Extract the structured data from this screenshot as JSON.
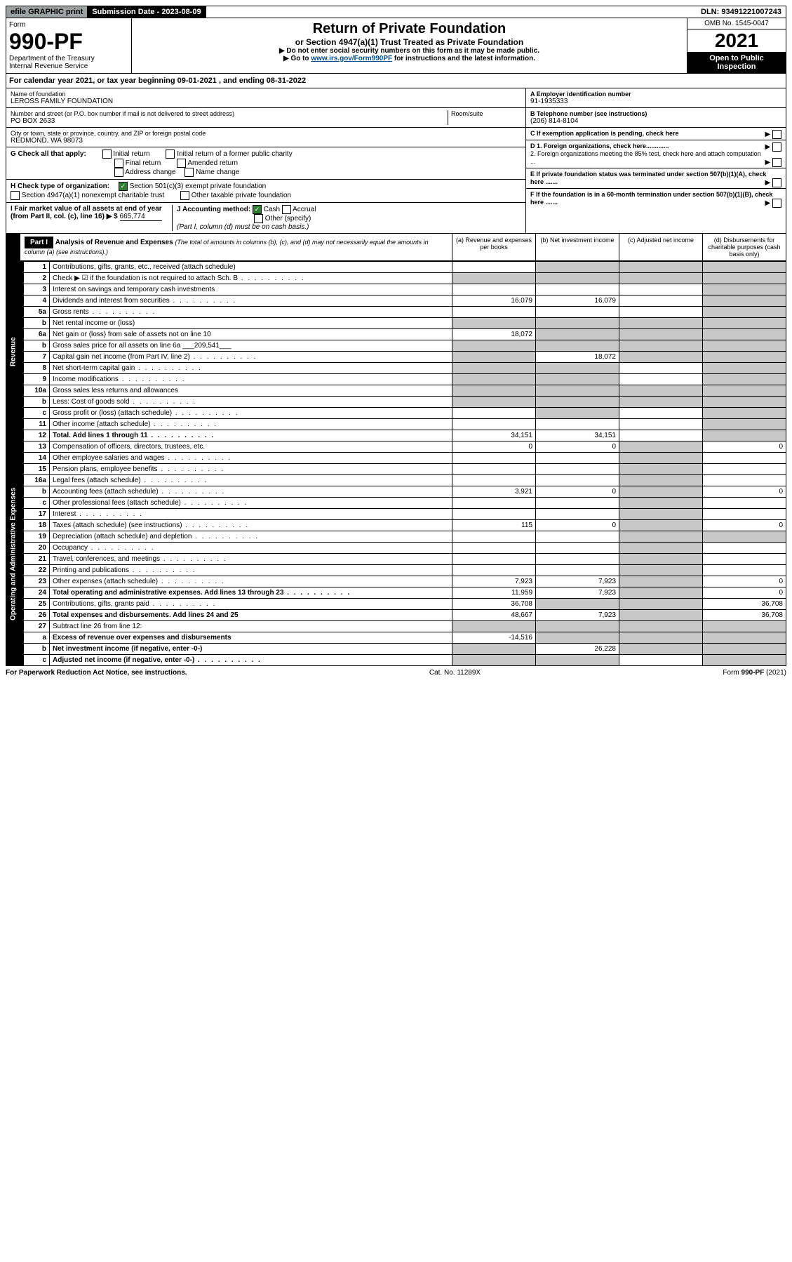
{
  "top": {
    "efile": "efile GRAPHIC print",
    "submission": "Submission Date - 2023-08-09",
    "dln": "DLN: 93491221007243"
  },
  "header": {
    "form_label": "Form",
    "form_num": "990-PF",
    "dept": "Department of the Treasury",
    "irs": "Internal Revenue Service",
    "title": "Return of Private Foundation",
    "subtitle": "or Section 4947(a)(1) Trust Treated as Private Foundation",
    "instr1": "▶ Do not enter social security numbers on this form as it may be made public.",
    "instr2_pre": "▶ Go to ",
    "instr2_link": "www.irs.gov/Form990PF",
    "instr2_post": " for instructions and the latest information.",
    "omb": "OMB No. 1545-0047",
    "year": "2021",
    "open": "Open to Public Inspection"
  },
  "calyear": "For calendar year 2021, or tax year beginning 09-01-2021           , and ending 08-31-2022",
  "name_label": "Name of foundation",
  "name": "LEROSS FAMILY FOUNDATION",
  "addr_label": "Number and street (or P.O. box number if mail is not delivered to street address)",
  "addr": "PO BOX 2633",
  "room_label": "Room/suite",
  "city_label": "City or town, state or province, country, and ZIP or foreign postal code",
  "city": "REDMOND, WA  98073",
  "ein_label": "A Employer identification number",
  "ein": "91-1935333",
  "tel_label": "B Telephone number (see instructions)",
  "tel": "(206) 814-8104",
  "c_label": "C If exemption application is pending, check here",
  "g_label": "G Check all that apply:",
  "g_opts": [
    "Initial return",
    "Initial return of a former public charity",
    "Final return",
    "Amended return",
    "Address change",
    "Name change"
  ],
  "d1": "D 1. Foreign organizations, check here.............",
  "d2": "2. Foreign organizations meeting the 85% test, check here and attach computation ...",
  "h_label": "H Check type of organization:",
  "h1": "Section 501(c)(3) exempt private foundation",
  "h2": "Section 4947(a)(1) nonexempt charitable trust",
  "h3": "Other taxable private foundation",
  "e_label": "E If private foundation status was terminated under section 507(b)(1)(A), check here .......",
  "i_label": "I Fair market value of all assets at end of year (from Part II, col. (c), line 16) ▶ $",
  "i_val": "665,774",
  "j_label": "J Accounting method:",
  "j_cash": "Cash",
  "j_accrual": "Accrual",
  "j_other": "Other (specify)",
  "j_note": "(Part I, column (d) must be on cash basis.)",
  "f_label": "F If the foundation is in a 60-month termination under section 507(b)(1)(B), check here .......",
  "part1": {
    "label": "Part I",
    "title": "Analysis of Revenue and Expenses",
    "title_note": "(The total of amounts in columns (b), (c), and (d) may not necessarily equal the amounts in column (a) (see instructions).)",
    "col_a": "(a) Revenue and expenses per books",
    "col_b": "(b) Net investment income",
    "col_c": "(c) Adjusted net income",
    "col_d": "(d) Disbursements for charitable purposes (cash basis only)"
  },
  "side_rev": "Revenue",
  "side_exp": "Operating and Administrative Expenses",
  "rows": [
    {
      "n": "1",
      "d": "Contributions, gifts, grants, etc., received (attach schedule)",
      "a": "",
      "b": "g",
      "c": "g",
      "dd": "g"
    },
    {
      "n": "2",
      "d": "Check ▶ ☑ if the foundation is not required to attach Sch. B",
      "dots": true,
      "a": "g",
      "b": "g",
      "c": "g",
      "dd": "g",
      "bold_not": true
    },
    {
      "n": "3",
      "d": "Interest on savings and temporary cash investments",
      "a": "",
      "b": "",
      "c": "",
      "dd": "g"
    },
    {
      "n": "4",
      "d": "Dividends and interest from securities",
      "dots": true,
      "a": "16,079",
      "b": "16,079",
      "c": "",
      "dd": "g"
    },
    {
      "n": "5a",
      "d": "Gross rents",
      "dots": true,
      "a": "",
      "b": "",
      "c": "",
      "dd": "g"
    },
    {
      "n": "b",
      "d": "Net rental income or (loss)",
      "a": "g",
      "b": "g",
      "c": "g",
      "dd": "g",
      "inline": true
    },
    {
      "n": "6a",
      "d": "Net gain or (loss) from sale of assets not on line 10",
      "a": "18,072",
      "b": "g",
      "c": "g",
      "dd": "g"
    },
    {
      "n": "b",
      "d": "Gross sales price for all assets on line 6a",
      "inline_val": "209,541",
      "a": "g",
      "b": "g",
      "c": "g",
      "dd": "g"
    },
    {
      "n": "7",
      "d": "Capital gain net income (from Part IV, line 2)",
      "dots": true,
      "a": "g",
      "b": "18,072",
      "c": "g",
      "dd": "g"
    },
    {
      "n": "8",
      "d": "Net short-term capital gain",
      "dots": true,
      "a": "g",
      "b": "g",
      "c": "",
      "dd": "g"
    },
    {
      "n": "9",
      "d": "Income modifications",
      "dots": true,
      "a": "g",
      "b": "g",
      "c": "",
      "dd": "g"
    },
    {
      "n": "10a",
      "d": "Gross sales less returns and allowances",
      "a": "g",
      "b": "g",
      "c": "g",
      "dd": "g",
      "inline": true
    },
    {
      "n": "b",
      "d": "Less: Cost of goods sold",
      "dots": true,
      "a": "g",
      "b": "g",
      "c": "g",
      "dd": "g",
      "inline": true
    },
    {
      "n": "c",
      "d": "Gross profit or (loss) (attach schedule)",
      "dots": true,
      "a": "",
      "b": "g",
      "c": "",
      "dd": "g"
    },
    {
      "n": "11",
      "d": "Other income (attach schedule)",
      "dots": true,
      "a": "",
      "b": "",
      "c": "",
      "dd": "g"
    },
    {
      "n": "12",
      "d": "Total. Add lines 1 through 11",
      "dots": true,
      "bold": true,
      "a": "34,151",
      "b": "34,151",
      "c": "",
      "dd": "g"
    },
    {
      "n": "13",
      "d": "Compensation of officers, directors, trustees, etc.",
      "a": "0",
      "b": "0",
      "c": "g",
      "dd": "0"
    },
    {
      "n": "14",
      "d": "Other employee salaries and wages",
      "dots": true,
      "a": "",
      "b": "",
      "c": "g",
      "dd": ""
    },
    {
      "n": "15",
      "d": "Pension plans, employee benefits",
      "dots": true,
      "a": "",
      "b": "",
      "c": "g",
      "dd": ""
    },
    {
      "n": "16a",
      "d": "Legal fees (attach schedule)",
      "dots": true,
      "a": "",
      "b": "",
      "c": "g",
      "dd": ""
    },
    {
      "n": "b",
      "d": "Accounting fees (attach schedule)",
      "dots": true,
      "a": "3,921",
      "b": "0",
      "c": "g",
      "dd": "0"
    },
    {
      "n": "c",
      "d": "Other professional fees (attach schedule)",
      "dots": true,
      "a": "",
      "b": "",
      "c": "g",
      "dd": ""
    },
    {
      "n": "17",
      "d": "Interest",
      "dots": true,
      "a": "",
      "b": "",
      "c": "g",
      "dd": ""
    },
    {
      "n": "18",
      "d": "Taxes (attach schedule) (see instructions)",
      "dots": true,
      "a": "115",
      "b": "0",
      "c": "g",
      "dd": "0"
    },
    {
      "n": "19",
      "d": "Depreciation (attach schedule) and depletion",
      "dots": true,
      "a": "",
      "b": "",
      "c": "g",
      "dd": "g"
    },
    {
      "n": "20",
      "d": "Occupancy",
      "dots": true,
      "a": "",
      "b": "",
      "c": "g",
      "dd": ""
    },
    {
      "n": "21",
      "d": "Travel, conferences, and meetings",
      "dots": true,
      "a": "",
      "b": "",
      "c": "g",
      "dd": ""
    },
    {
      "n": "22",
      "d": "Printing and publications",
      "dots": true,
      "a": "",
      "b": "",
      "c": "g",
      "dd": ""
    },
    {
      "n": "23",
      "d": "Other expenses (attach schedule)",
      "dots": true,
      "a": "7,923",
      "b": "7,923",
      "c": "g",
      "dd": "0"
    },
    {
      "n": "24",
      "d": "Total operating and administrative expenses. Add lines 13 through 23",
      "dots": true,
      "bold": true,
      "a": "11,959",
      "b": "7,923",
      "c": "g",
      "dd": "0"
    },
    {
      "n": "25",
      "d": "Contributions, gifts, grants paid",
      "dots": true,
      "a": "36,708",
      "b": "g",
      "c": "g",
      "dd": "36,708"
    },
    {
      "n": "26",
      "d": "Total expenses and disbursements. Add lines 24 and 25",
      "bold": true,
      "a": "48,667",
      "b": "7,923",
      "c": "g",
      "dd": "36,708"
    },
    {
      "n": "27",
      "d": "Subtract line 26 from line 12:",
      "a": "g",
      "b": "g",
      "c": "g",
      "dd": "g"
    },
    {
      "n": "a",
      "d": "Excess of revenue over expenses and disbursements",
      "bold": true,
      "a": "-14,516",
      "b": "g",
      "c": "g",
      "dd": "g"
    },
    {
      "n": "b",
      "d": "Net investment income (if negative, enter -0-)",
      "bold": true,
      "a": "g",
      "b": "26,228",
      "c": "g",
      "dd": "g"
    },
    {
      "n": "c",
      "d": "Adjusted net income (if negative, enter -0-)",
      "dots": true,
      "bold": true,
      "a": "g",
      "b": "g",
      "c": "",
      "dd": "g"
    }
  ],
  "footer": {
    "left": "For Paperwork Reduction Act Notice, see instructions.",
    "mid": "Cat. No. 11289X",
    "right": "Form 990-PF (2021)"
  }
}
